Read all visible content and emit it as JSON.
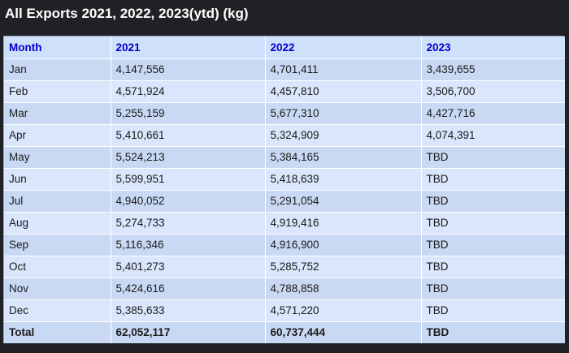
{
  "title": "All Exports 2021, 2022, 2023(ytd) (kg)",
  "table": {
    "headers": [
      "Month",
      "2021",
      "2022",
      "2023"
    ],
    "rows": [
      [
        "Jan",
        "4,147,556",
        "4,701,411",
        "3,439,655"
      ],
      [
        "Feb",
        "4,571,924",
        "4,457,810",
        "3,506,700"
      ],
      [
        "Mar",
        "5,255,159",
        "5,677,310",
        "4,427,716"
      ],
      [
        "Apr",
        "5,410,661",
        "5,324,909",
        "4,074,391"
      ],
      [
        "May",
        "5,524,213",
        "5,384,165",
        "TBD"
      ],
      [
        "Jun",
        "5,599,951",
        "5,418,639",
        "TBD"
      ],
      [
        "Jul",
        "4,940,052",
        "5,291,054",
        "TBD"
      ],
      [
        "Aug",
        "5,274,733",
        "4,919,416",
        "TBD"
      ],
      [
        "Sep",
        "5,116,346",
        "4,916,900",
        "TBD"
      ],
      [
        "Oct",
        "5,401,273",
        "5,285,752",
        "TBD"
      ],
      [
        "Nov",
        "5,424,616",
        "4,788,858",
        "TBD"
      ],
      [
        "Dec",
        "5,385,633",
        "4,571,220",
        "TBD"
      ]
    ],
    "total": [
      "Total",
      "62,052,117",
      "60,737,444",
      "TBD"
    ]
  },
  "colors": {
    "background": "#202124",
    "header_text": "#0000cc",
    "row_odd": "#c9d9f4",
    "row_even": "#d9e6fb"
  }
}
